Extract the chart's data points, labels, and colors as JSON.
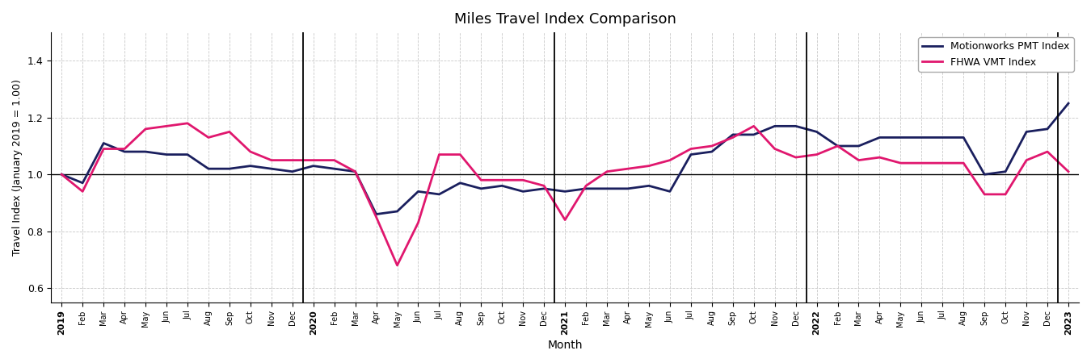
{
  "title": "Miles Travel Index Comparison",
  "xlabel": "Month",
  "ylabel": "Travel Index (January 2019 = 1.00)",
  "ylim": [
    0.55,
    1.5
  ],
  "yticks": [
    0.6,
    0.8,
    1.0,
    1.2,
    1.4
  ],
  "pmt_color": "#1a1f5e",
  "fhwa_color": "#e0176e",
  "pmt_label": "Motionworks PMT Index",
  "fhwa_label": "FHWA VMT Index",
  "line_width": 2.0,
  "background_color": "#ffffff",
  "grid_color": "#c8c8c8",
  "pmt_values": [
    1.0,
    0.97,
    1.11,
    1.08,
    1.08,
    1.07,
    1.07,
    1.02,
    1.02,
    1.03,
    1.02,
    1.01,
    1.03,
    1.02,
    1.01,
    0.86,
    0.87,
    0.94,
    0.93,
    0.97,
    0.95,
    0.96,
    0.94,
    0.95,
    0.94,
    0.95,
    0.95,
    0.95,
    0.96,
    0.94,
    1.07,
    1.08,
    1.14,
    1.14,
    1.17,
    1.17,
    1.15,
    1.1,
    1.1,
    1.13,
    1.13,
    1.13,
    1.13,
    1.13,
    1.0,
    1.01,
    1.15,
    1.16,
    1.25
  ],
  "fhwa_values": [
    1.0,
    0.94,
    1.09,
    1.09,
    1.16,
    1.17,
    1.18,
    1.13,
    1.15,
    1.08,
    1.05,
    1.05,
    1.05,
    1.05,
    1.01,
    0.85,
    0.68,
    0.83,
    1.07,
    1.07,
    0.98,
    0.98,
    0.98,
    0.96,
    0.84,
    0.96,
    1.01,
    1.02,
    1.03,
    1.05,
    1.09,
    1.1,
    1.13,
    1.17,
    1.09,
    1.06,
    1.07,
    1.1,
    1.05,
    1.06,
    1.04,
    1.04,
    1.04,
    1.04,
    0.93,
    0.93,
    1.05,
    1.08,
    1.01
  ],
  "x_tick_labels": [
    "2019",
    "Feb",
    "Mar",
    "Apr",
    "May",
    "Jun",
    "Jul",
    "Aug",
    "Sep",
    "Oct",
    "Nov",
    "Dec",
    "2020",
    "Feb",
    "Mar",
    "Apr",
    "May",
    "Jun",
    "Jul",
    "Aug",
    "Sep",
    "Oct",
    "Nov",
    "Dec",
    "2021",
    "Feb",
    "Mar",
    "Apr",
    "May",
    "Jun",
    "Jul",
    "Aug",
    "Sep",
    "Oct",
    "Nov",
    "Dec",
    "2022",
    "Feb",
    "Mar",
    "Apr",
    "May",
    "Jun",
    "Jul",
    "Aug",
    "Sep",
    "Oct",
    "Nov",
    "Dec",
    "2023"
  ],
  "year_positions": [
    0,
    12,
    24,
    36,
    48
  ],
  "vline_positions": [
    11.5,
    23.5,
    35.5,
    47.5
  ]
}
